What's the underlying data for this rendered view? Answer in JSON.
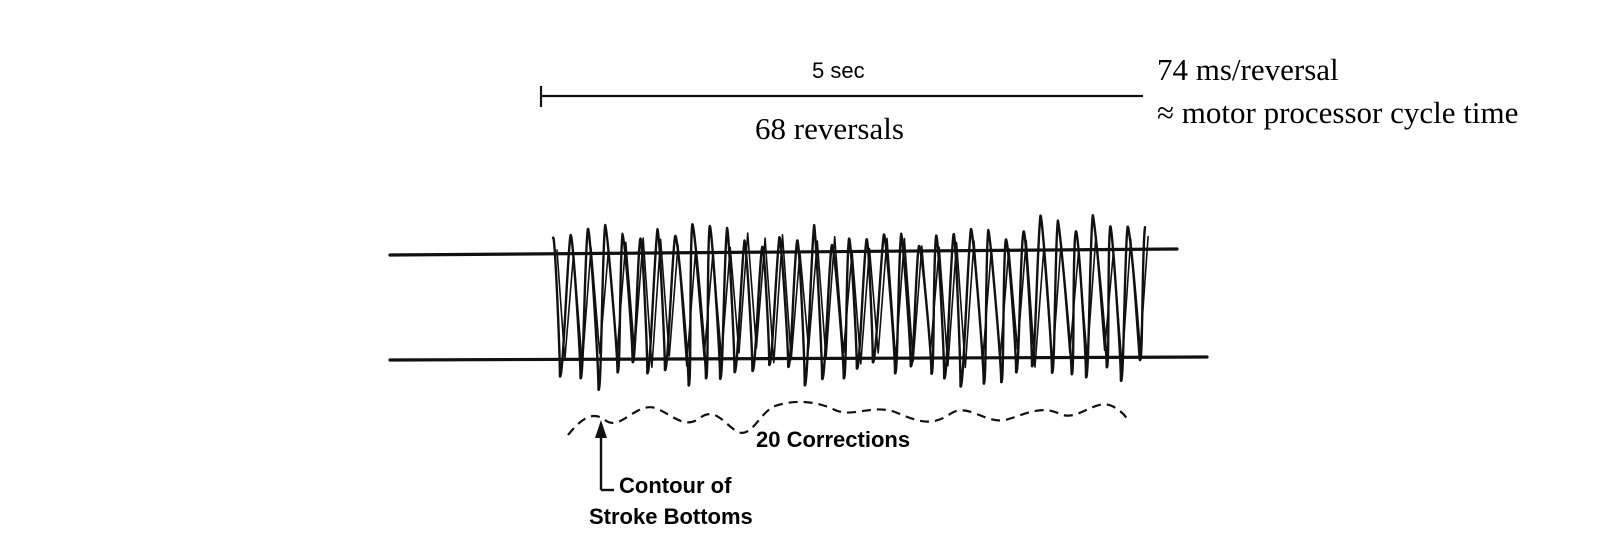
{
  "scale_bar": {
    "label": "5 sec"
  },
  "reversals": {
    "label": "68 reversals"
  },
  "rate_note": {
    "line1": "74 ms/reversal",
    "line2": "≈ motor processor cycle time"
  },
  "corrections": {
    "label": "20 Corrections"
  },
  "contour": {
    "line1": "Contour of",
    "line2": "Stroke Bottoms"
  },
  "colors": {
    "ink": "#111111",
    "background": "#ffffff"
  }
}
